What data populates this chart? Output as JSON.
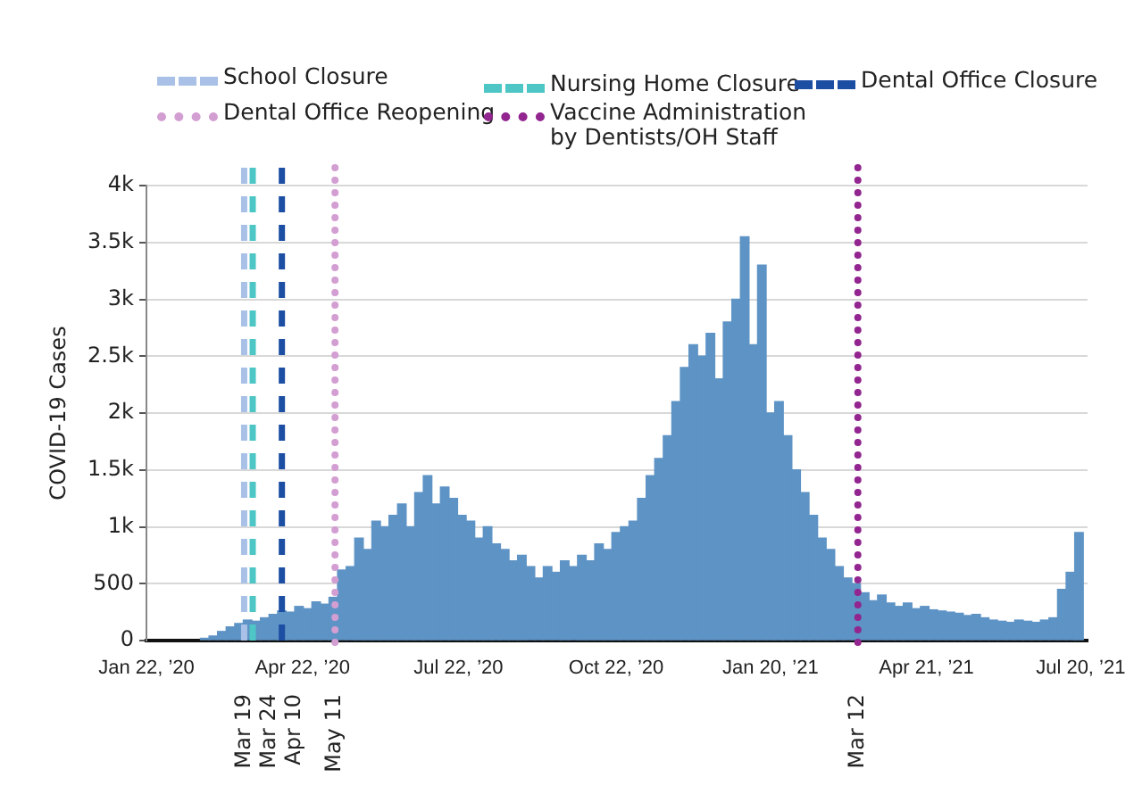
{
  "chart_data": {
    "type": "bar",
    "ylabel": "COVID-19 Cases",
    "color": "#5e93c5",
    "x": [
      "2020-02-25",
      "2020-03-01",
      "2020-03-06",
      "2020-03-11",
      "2020-03-16",
      "2020-03-21",
      "2020-03-26",
      "2020-03-31",
      "2020-04-05",
      "2020-04-10",
      "2020-04-15",
      "2020-04-20",
      "2020-04-25",
      "2020-04-30",
      "2020-05-05",
      "2020-05-10",
      "2020-05-15",
      "2020-05-20",
      "2020-05-25",
      "2020-05-30",
      "2020-06-04",
      "2020-06-09",
      "2020-06-14",
      "2020-06-19",
      "2020-06-24",
      "2020-06-29",
      "2020-07-04",
      "2020-07-09",
      "2020-07-14",
      "2020-07-19",
      "2020-07-24",
      "2020-07-29",
      "2020-08-03",
      "2020-08-08",
      "2020-08-13",
      "2020-08-18",
      "2020-08-23",
      "2020-08-28",
      "2020-09-02",
      "2020-09-07",
      "2020-09-12",
      "2020-09-17",
      "2020-09-22",
      "2020-09-27",
      "2020-10-02",
      "2020-10-07",
      "2020-10-12",
      "2020-10-17",
      "2020-10-22",
      "2020-10-27",
      "2020-11-01",
      "2020-11-06",
      "2020-11-11",
      "2020-11-16",
      "2020-11-21",
      "2020-11-26",
      "2020-12-01",
      "2020-12-06",
      "2020-12-11",
      "2020-12-16",
      "2020-12-21",
      "2020-12-26",
      "2020-12-31",
      "2021-01-05",
      "2021-01-10",
      "2021-01-15",
      "2021-01-20",
      "2021-01-25",
      "2021-01-30",
      "2021-02-04",
      "2021-02-09",
      "2021-02-14",
      "2021-02-19",
      "2021-02-24",
      "2021-03-01",
      "2021-03-06",
      "2021-03-11",
      "2021-03-16",
      "2021-03-21",
      "2021-03-26",
      "2021-03-31",
      "2021-04-05",
      "2021-04-10",
      "2021-04-15",
      "2021-04-20",
      "2021-04-25",
      "2021-04-30",
      "2021-05-05",
      "2021-05-10",
      "2021-05-15",
      "2021-05-20",
      "2021-05-25",
      "2021-05-30",
      "2021-06-04",
      "2021-06-09",
      "2021-06-14",
      "2021-06-19",
      "2021-06-24",
      "2021-06-29",
      "2021-07-04",
      "2021-07-09",
      "2021-07-14",
      "2021-07-19"
    ],
    "values": [
      20,
      40,
      80,
      120,
      150,
      180,
      170,
      200,
      230,
      260,
      250,
      300,
      280,
      340,
      320,
      380,
      620,
      650,
      900,
      800,
      1050,
      1000,
      1100,
      1200,
      1000,
      1300,
      1450,
      1200,
      1350,
      1250,
      1100,
      1050,
      900,
      1000,
      850,
      800,
      700,
      750,
      650,
      550,
      650,
      600,
      700,
      650,
      750,
      700,
      850,
      800,
      950,
      1000,
      1050,
      1250,
      1450,
      1600,
      1800,
      2100,
      2400,
      2600,
      2500,
      2700,
      2300,
      2800,
      3000,
      3550,
      2600,
      3300,
      2000,
      2100,
      1800,
      1500,
      1300,
      1100,
      900,
      800,
      650,
      550,
      500,
      420,
      350,
      400,
      330,
      300,
      330,
      280,
      300,
      270,
      260,
      250,
      240,
      220,
      230,
      200,
      180,
      170,
      160,
      180,
      170,
      160,
      180,
      200,
      450,
      600,
      950
    ],
    "xlim": [
      "2020-01-22",
      "2021-07-24"
    ],
    "xticks": [
      {
        "value": "2020-01-22",
        "label": "Jan 22, ’20"
      },
      {
        "value": "2020-04-22",
        "label": "Apr 22, ’20"
      },
      {
        "value": "2020-07-22",
        "label": "Jul 22, ’20"
      },
      {
        "value": "2020-10-22",
        "label": "Oct 22, ’20"
      },
      {
        "value": "2021-01-20",
        "label": "Jan 20, ’21"
      },
      {
        "value": "2021-04-21",
        "label": "Apr 21, ’21"
      },
      {
        "value": "2021-07-20",
        "label": "Jul 20, ’21"
      }
    ],
    "ylim": [
      0,
      4000
    ],
    "yticks": [
      0,
      500,
      {
        "value": 1000,
        "label": "1k"
      },
      {
        "value": 1500,
        "label": "1.5k"
      },
      {
        "value": 2000,
        "label": "2k"
      },
      {
        "value": 2500,
        "label": "2.5k"
      },
      {
        "value": 3000,
        "label": "3k"
      },
      {
        "value": 3500,
        "label": "3.5k"
      },
      {
        "value": 4000,
        "label": "4k"
      }
    ],
    "grid": "y",
    "legend": "top",
    "ref_lines": [
      {
        "axis": "x",
        "value": "2020-03-19",
        "label": "School Closure",
        "color": "#a9c1e7",
        "line_style": "dashed"
      },
      {
        "axis": "x",
        "value": "2020-03-24",
        "label": "Nursing Home Closure",
        "color": "#4ec6c6",
        "line_style": "dashed"
      },
      {
        "axis": "x",
        "value": "2020-04-10",
        "label": "Dental Office Closure",
        "color": "#1c4ea3",
        "line_style": "dashed"
      },
      {
        "axis": "x",
        "value": "2020-05-11",
        "label": "Dental Office Reopening",
        "color": "#d39ed2",
        "line_style": "dotted"
      },
      {
        "axis": "x",
        "value": "2021-03-12",
        "label": "Vaccine Administration\nby Dentists/OH Staff",
        "color": "#92258f",
        "line_style": "dotted"
      }
    ],
    "annotations": [
      "Mar 19",
      "Mar 24",
      "Apr 10",
      "May 11",
      "Mar 12"
    ]
  }
}
